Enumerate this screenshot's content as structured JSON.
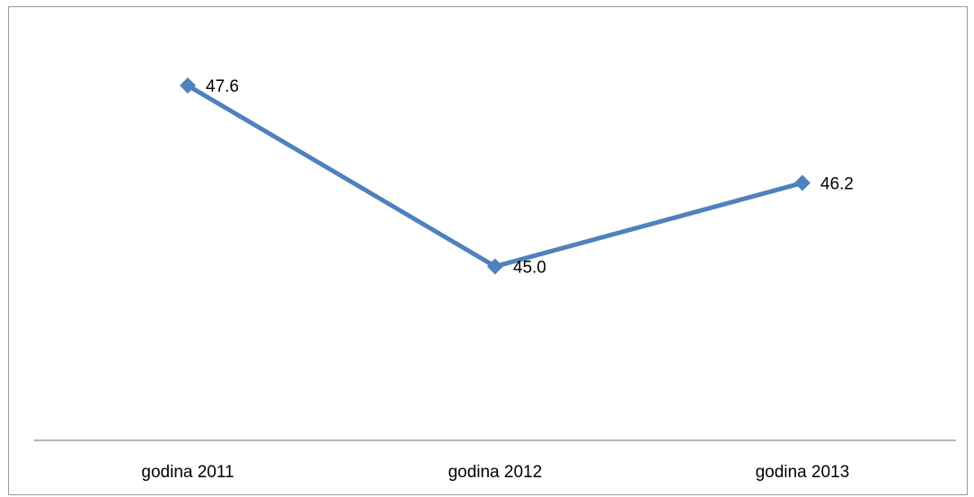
{
  "chart_data": {
    "type": "line",
    "title": "",
    "xlabel": "",
    "ylabel": "",
    "categories": [
      "godina 2011",
      "godina 2012",
      "godina 2013"
    ],
    "series": [
      {
        "values": [
          47.6,
          45.0,
          46.2
        ],
        "data_labels": [
          "47.6",
          "45.0",
          "46.2"
        ],
        "color": "#4F81BD",
        "marker": "diamond"
      }
    ],
    "ylim": [
      42.5,
      48.7
    ],
    "y_axis_visible": false,
    "grid": false,
    "legend": "none"
  }
}
